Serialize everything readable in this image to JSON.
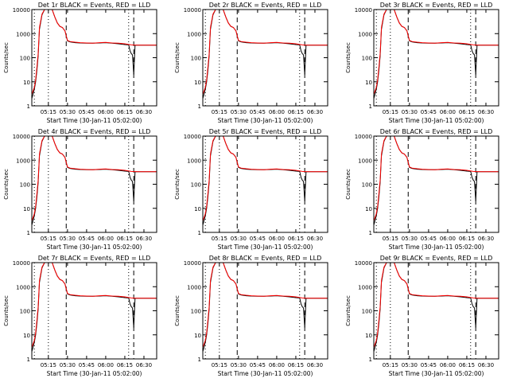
{
  "chart_data": [
    {
      "title": "Det 1r BLACK = Events, RED = LLD"
    },
    {
      "title": "Det 2r BLACK = Events, RED = LLD"
    },
    {
      "title": "Det 3r BLACK = Events, RED = LLD"
    },
    {
      "title": "Det 4r BLACK = Events, RED = LLD"
    },
    {
      "title": "Det 5r BLACK = Events, RED = LLD"
    },
    {
      "title": "Det 6r BLACK = Events, RED = LLD"
    },
    {
      "title": "Det 7r BLACK = Events, RED = LLD"
    },
    {
      "title": "Det 8r BLACK = Events, RED = LLD"
    },
    {
      "title": "Det 9r BLACK = Events, RED = LLD"
    }
  ],
  "shared": {
    "type": "line",
    "ylabel": "Counts/sec",
    "xlabel": "Start Time (30-Jan-11 05:02:00)",
    "yscale": "log",
    "ylim": [
      1,
      10000
    ],
    "ytick_labels": [
      "1",
      "10",
      "100",
      "1000",
      "10000"
    ],
    "ytick_values": [
      1,
      10,
      100,
      1000,
      10000
    ],
    "xlim": [
      "05:02",
      "06:40"
    ],
    "xtick_labels": [
      "05:15",
      "05:30",
      "05:45",
      "06:00",
      "06:15",
      "06:30"
    ],
    "xtick_values": [
      "05:15",
      "05:30",
      "05:45",
      "06:00",
      "06:15",
      "06:30"
    ],
    "vlines": [
      {
        "x": "05:04",
        "style": "dotted"
      },
      {
        "x": "05:15",
        "style": "dotted"
      },
      {
        "x": "05:29",
        "style": "dashed"
      },
      {
        "x": "06:18",
        "style": "dotted"
      },
      {
        "x": "06:22",
        "style": "dashed"
      }
    ],
    "series": [
      {
        "name": "BLACK = Events",
        "color": "#000000",
        "x": [
          "05:02",
          "05:04",
          "05:05",
          "05:06",
          "05:07",
          "05:08",
          "05:10",
          "05:12",
          "05:15",
          "05:18",
          "05:20",
          "05:22",
          "05:24",
          "05:26",
          "05:28",
          "05:29",
          "05:30",
          "05:32",
          "05:36",
          "05:40",
          "05:45",
          "05:50",
          "05:55",
          "06:00",
          "06:05",
          "06:10",
          "06:15",
          "06:18",
          "06:19",
          "06:20",
          "06:21",
          "06:22",
          "06:23",
          "06:24",
          "06:30",
          "06:40"
        ],
        "y": [
          2,
          5,
          10,
          30,
          120,
          1500,
          6000,
          10000,
          10000,
          10000,
          5000,
          2800,
          2000,
          1800,
          1300,
          800,
          500,
          450,
          420,
          410,
          400,
          400,
          410,
          420,
          400,
          380,
          350,
          340,
          200,
          150,
          130,
          20,
          320,
          330,
          330,
          330
        ]
      },
      {
        "name": "RED = LLD",
        "color": "#ff0000",
        "x": [
          "05:02",
          "05:04",
          "05:05",
          "05:06",
          "05:07",
          "05:08",
          "05:10",
          "05:12",
          "05:15",
          "05:18",
          "05:20",
          "05:22",
          "05:24",
          "05:26",
          "05:28",
          "05:29",
          "05:30",
          "05:32",
          "05:36",
          "05:40",
          "05:45",
          "05:50",
          "05:55",
          "06:00",
          "06:05",
          "06:10",
          "06:15",
          "06:20",
          "06:25",
          "06:30",
          "06:40"
        ],
        "y": [
          3,
          6,
          12,
          40,
          150,
          1800,
          6500,
          10000,
          10000,
          10000,
          5000,
          2800,
          2000,
          1800,
          1300,
          800,
          520,
          470,
          440,
          420,
          410,
          400,
          420,
          430,
          410,
          400,
          380,
          340,
          330,
          330,
          330
        ]
      }
    ]
  }
}
